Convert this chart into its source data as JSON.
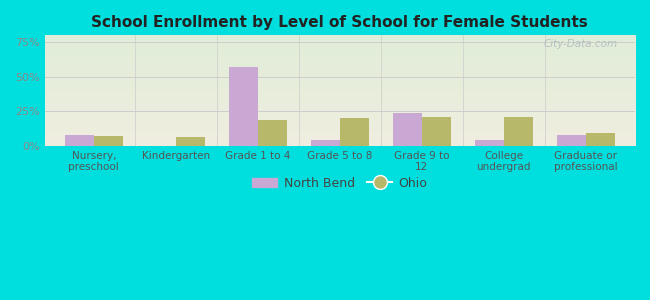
{
  "title": "School Enrollment by Level of School for Female Students",
  "categories": [
    "Nursery,\npreschool",
    "Kindergarten",
    "Grade 1 to 4",
    "Grade 5 to 8",
    "Grade 9 to\n12",
    "College\nundergrad",
    "Graduate or\nprofessional"
  ],
  "north_bend": [
    8.0,
    0.0,
    57.0,
    4.0,
    24.0,
    4.0,
    8.0
  ],
  "ohio": [
    7.0,
    6.0,
    19.0,
    20.0,
    21.0,
    21.0,
    9.0
  ],
  "north_bend_color": "#c9a8d4",
  "ohio_color": "#b8b86a",
  "background_outer": "#00dede",
  "ylim": [
    0,
    80
  ],
  "yticks": [
    0,
    25,
    50,
    75
  ],
  "ytick_labels": [
    "0%",
    "25%",
    "50%",
    "75%"
  ],
  "legend_labels": [
    "North Bend",
    "Ohio"
  ],
  "bar_width": 0.35,
  "watermark": "City-Data.com",
  "bg_color_top": "#e0edd8",
  "bg_color_bottom": "#f0ede0"
}
